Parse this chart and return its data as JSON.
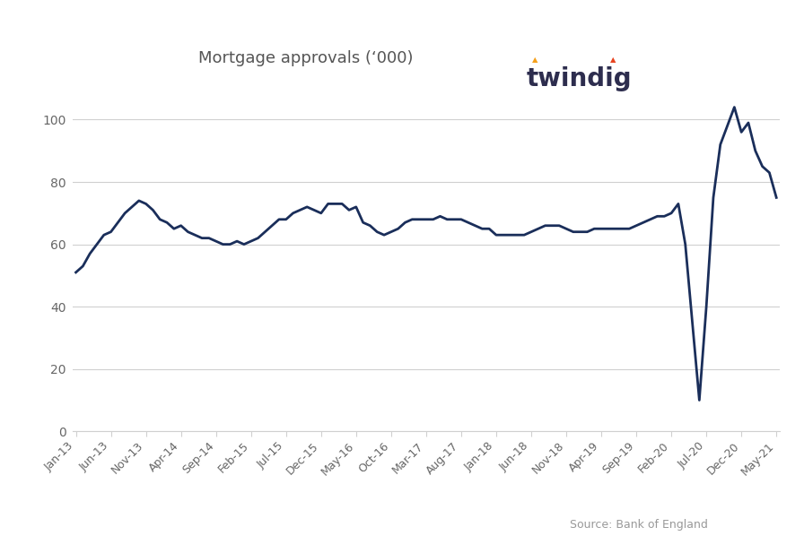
{
  "title": "Mortgage approvals (‘000)",
  "source_text": "Source: Bank of England",
  "line_color": "#1a2e5a",
  "background_color": "#ffffff",
  "ylim": [
    0,
    110
  ],
  "yticks": [
    0,
    20,
    40,
    60,
    80,
    100
  ],
  "x_labels": [
    "Jan-13",
    "Jun-13",
    "Nov-13",
    "Apr-14",
    "Sep-14",
    "Feb-15",
    "Jul-15",
    "Dec-15",
    "May-16",
    "Oct-16",
    "Mar-17",
    "Aug-17",
    "Jan-18",
    "Jun-18",
    "Nov-18",
    "Apr-19",
    "Sep-19",
    "Feb-20",
    "Jul-20",
    "Dec-20",
    "May-21"
  ],
  "monthly_values": [
    51,
    53,
    57,
    60,
    63,
    64,
    67,
    70,
    72,
    74,
    73,
    71,
    68,
    67,
    65,
    66,
    64,
    63,
    62,
    62,
    61,
    60,
    60,
    61,
    60,
    61,
    62,
    64,
    66,
    68,
    68,
    70,
    71,
    72,
    71,
    70,
    73,
    73,
    73,
    71,
    72,
    67,
    66,
    64,
    63,
    64,
    65,
    67,
    68,
    68,
    68,
    68,
    69,
    68,
    68,
    68,
    67,
    66,
    65,
    65,
    63,
    63,
    63,
    63,
    63,
    64,
    65,
    66,
    66,
    66,
    65,
    64,
    64,
    64,
    65,
    65,
    65,
    65,
    65,
    65,
    66,
    67,
    68,
    69,
    69,
    70,
    73,
    60,
    35,
    10,
    40,
    75,
    92,
    98,
    104,
    96,
    99,
    90,
    85,
    83,
    75
  ],
  "twindig_color": "#2d2d4e",
  "twindig_dot1_color": "#f5a01a",
  "twindig_dot2_color": "#e84420"
}
